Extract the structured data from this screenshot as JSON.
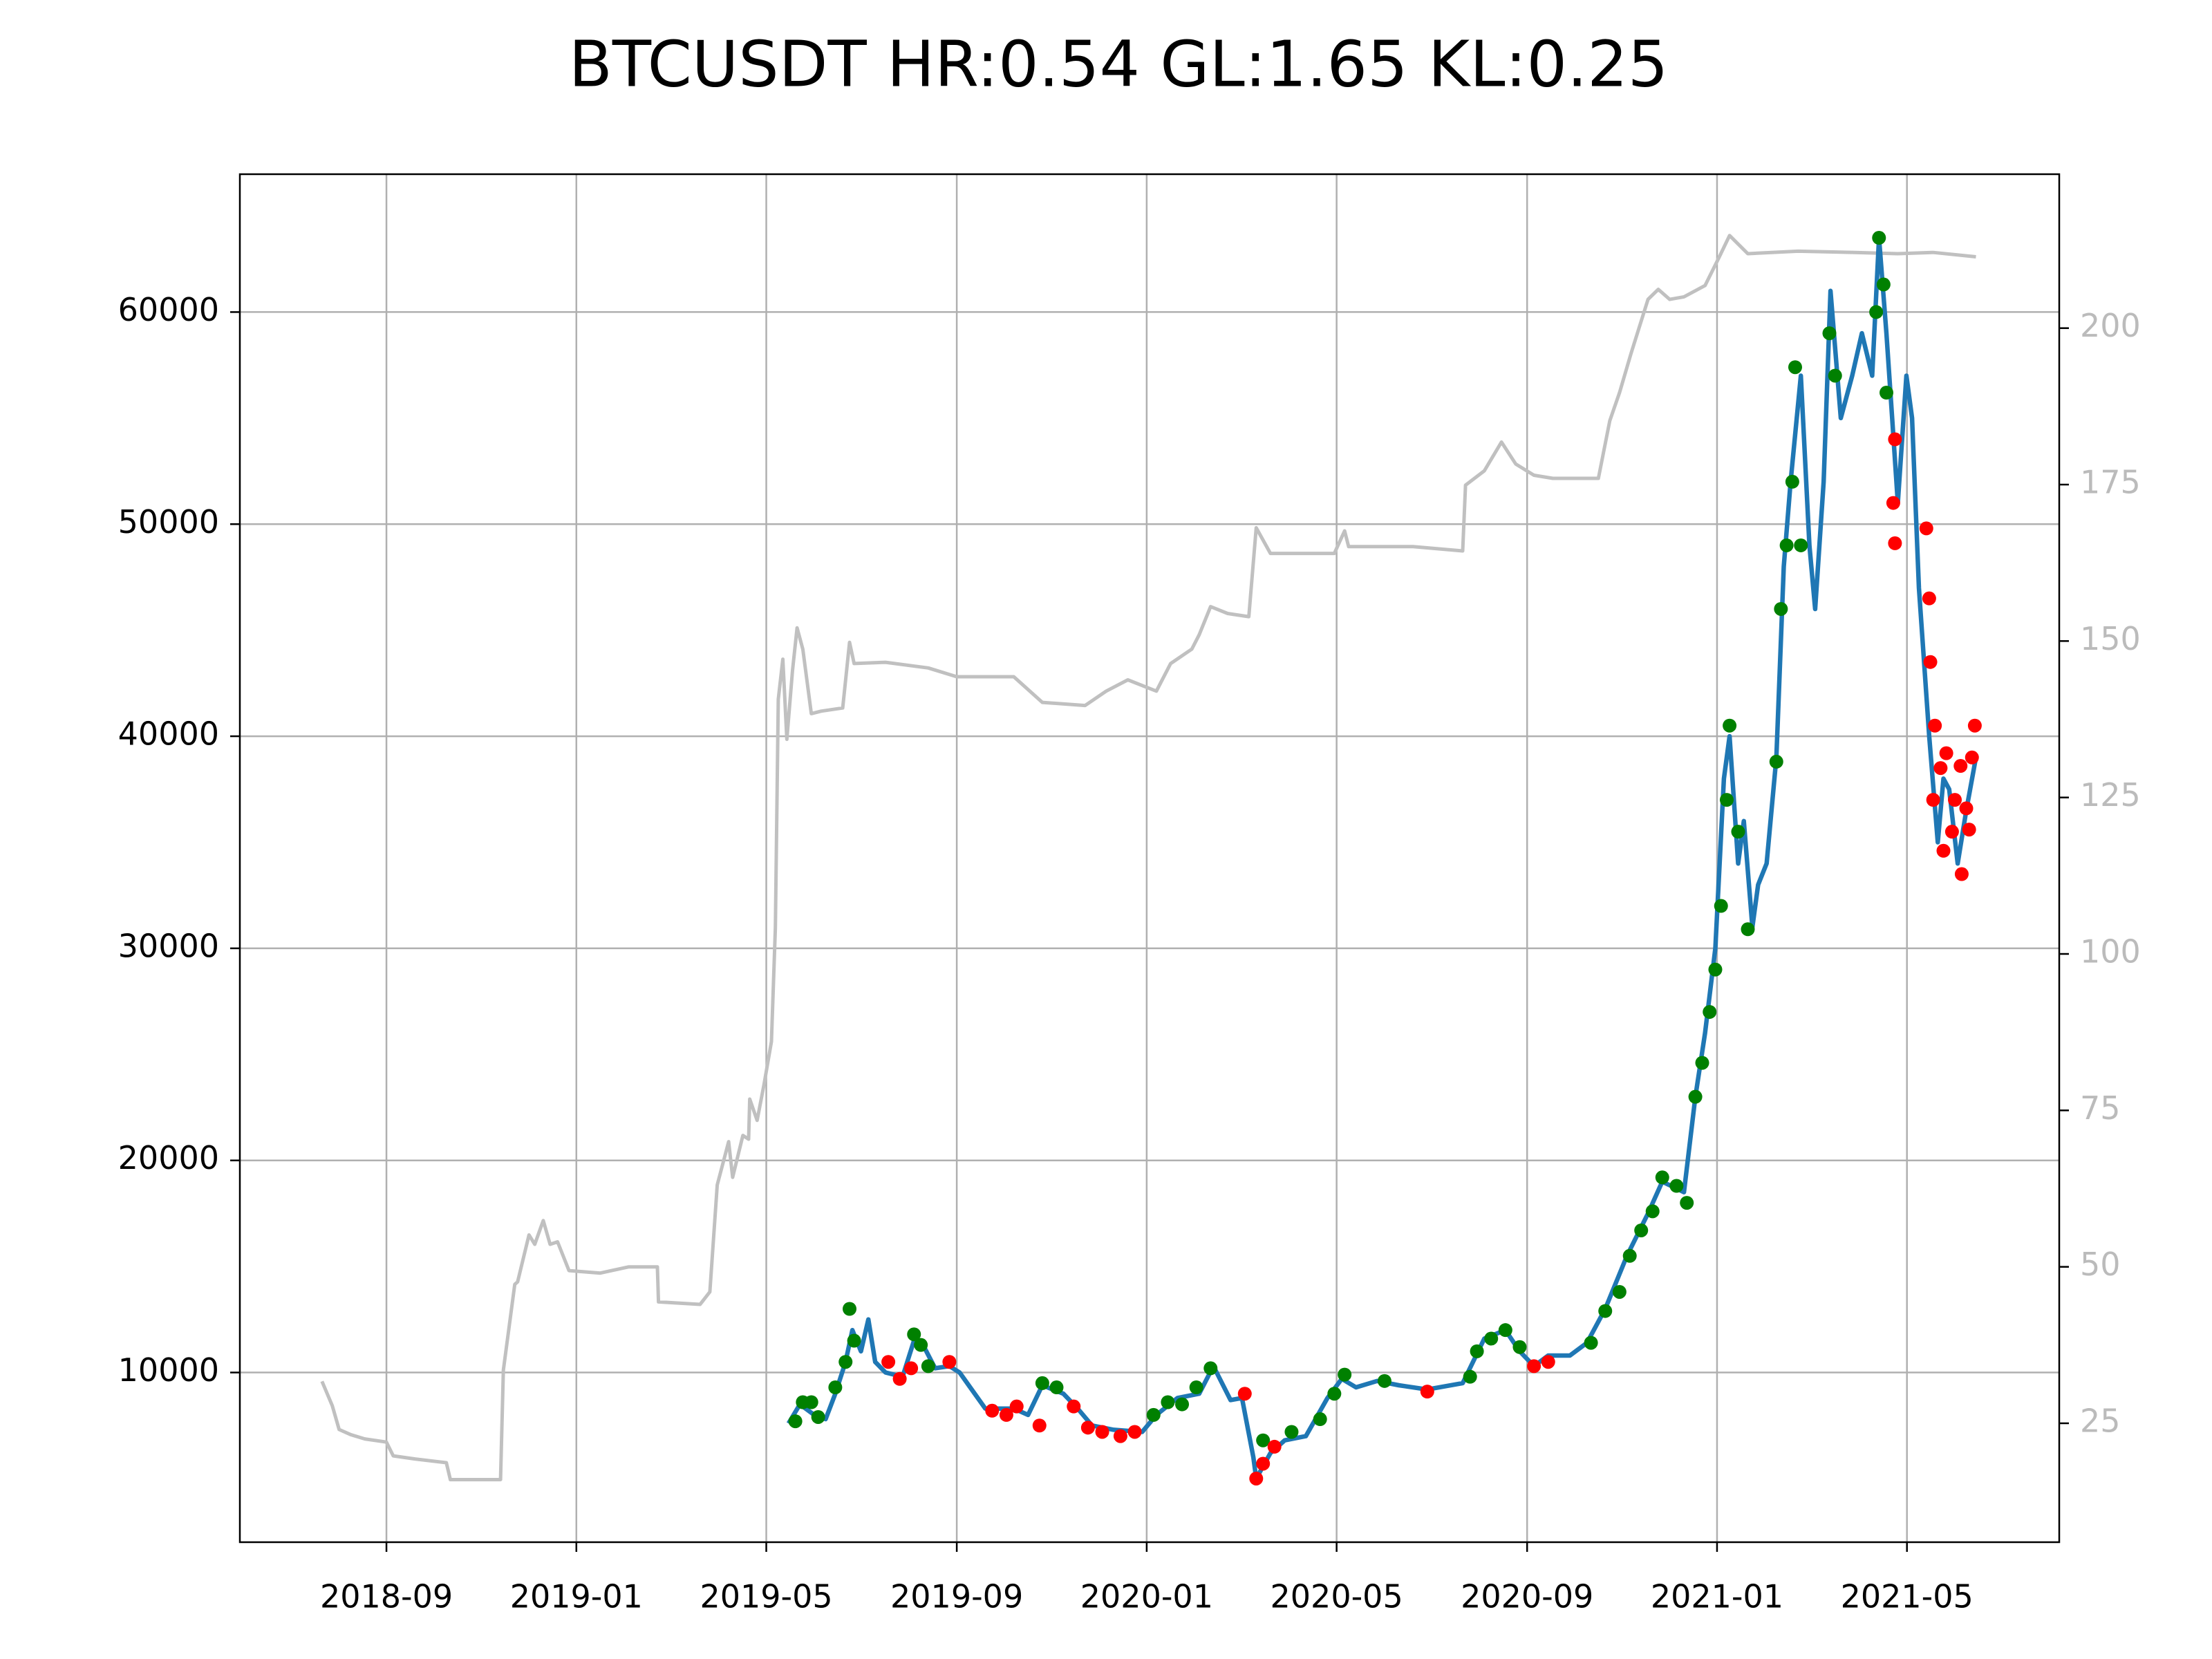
{
  "chart_data": {
    "type": "line",
    "title": "BTCUSDT HR:0.54 GL:1.65 KL:0.25",
    "xlim": [
      2018.41,
      2021.6
    ],
    "xticks": [
      {
        "value": 2018.667,
        "label": "2018-09"
      },
      {
        "value": 2019.0,
        "label": "2019-01"
      },
      {
        "value": 2019.333,
        "label": "2019-05"
      },
      {
        "value": 2019.667,
        "label": "2019-09"
      },
      {
        "value": 2020.0,
        "label": "2020-01"
      },
      {
        "value": 2020.333,
        "label": "2020-05"
      },
      {
        "value": 2020.667,
        "label": "2020-09"
      },
      {
        "value": 2021.0,
        "label": "2021-01"
      },
      {
        "value": 2021.333,
        "label": "2021-05"
      }
    ],
    "ylim": [
      2000,
      66500
    ],
    "yticks": [
      10000,
      20000,
      30000,
      40000,
      50000,
      60000
    ],
    "y2lim": [
      6,
      224.6
    ],
    "y2ticks": [
      25,
      50,
      75,
      100,
      125,
      150,
      175,
      200
    ],
    "y2_tick_color": "#bbbbbb",
    "grid": true,
    "series": [
      {
        "color": "#c0c0c0",
        "style": "line",
        "axis": "y2",
        "x": [
          2018.554,
          2018.572,
          2018.584,
          2018.604,
          2018.629,
          2018.667,
          2018.679,
          2018.717,
          2018.772,
          2018.779,
          2018.867,
          2018.872,
          2018.892,
          2018.897,
          2018.917,
          2018.927,
          2018.942,
          2018.954,
          2018.967,
          2018.987,
          2019.042,
          2019.092,
          2019.142,
          2019.144,
          2019.217,
          2019.234,
          2019.247,
          2019.267,
          2019.274,
          2019.292,
          2019.302,
          2019.304,
          2019.317,
          2019.329,
          2019.342,
          2019.349,
          2019.354,
          2019.362,
          2019.369,
          2019.379,
          2019.387,
          2019.397,
          2019.412,
          2019.429,
          2019.467,
          2019.479,
          2019.487,
          2019.542,
          2019.617,
          2019.667,
          2019.767,
          2019.817,
          2019.892,
          2019.929,
          2019.967,
          2020.017,
          2020.042,
          2020.079,
          2020.092,
          2020.112,
          2020.142,
          2020.179,
          2020.192,
          2020.217,
          2020.329,
          2020.347,
          2020.354,
          2020.467,
          2020.554,
          2020.559,
          2020.592,
          2020.622,
          2020.647,
          2020.679,
          2020.712,
          2020.792,
          2020.812,
          2020.829,
          2020.849,
          2020.879,
          2020.897,
          2020.917,
          2020.942,
          2020.979,
          2021.004,
          2021.022,
          2021.054,
          2021.142,
          2021.242,
          2021.317,
          2021.379,
          2021.454
        ],
        "values": [
          31.7,
          27.8,
          24.0,
          23.2,
          22.5,
          22,
          19.8,
          19.3,
          18.7,
          16,
          16,
          33.5,
          47.2,
          47.6,
          55.1,
          53.6,
          57.4,
          53.6,
          54,
          49.4,
          49,
          50,
          50,
          44.4,
          44,
          46,
          63.1,
          70,
          64.3,
          71,
          70.4,
          76.8,
          73.4,
          79.1,
          86,
          104.2,
          140.7,
          147.1,
          134.3,
          145.3,
          152.1,
          148.7,
          138.4,
          138.8,
          139.3,
          149.8,
          146.4,
          146.6,
          145.7,
          144.3,
          144.3,
          140.2,
          139.7,
          142,
          143.8,
          142,
          146.4,
          148.7,
          151,
          155.5,
          154.4,
          153.9,
          168.1,
          164,
          164,
          167.6,
          165.1,
          165.1,
          164.4,
          174.9,
          177.2,
          181.8,
          178.3,
          176.5,
          176,
          176,
          185.2,
          189.7,
          195.9,
          204.6,
          206.2,
          204.6,
          205,
          206.8,
          211.4,
          214.8,
          211.9,
          212.3,
          212.1,
          211.9,
          212.1,
          211.4
        ]
      },
      {
        "color": "#1f77b4",
        "style": "line",
        "x": [
          2019.372,
          2019.392,
          2019.417,
          2019.437,
          2019.454,
          2019.472,
          2019.484,
          2019.499,
          2019.512,
          2019.524,
          2019.542,
          2019.572,
          2019.592,
          2019.604,
          2019.629,
          2019.654,
          2019.672,
          2019.717,
          2019.767,
          2019.792,
          2019.817,
          2019.854,
          2019.879,
          2019.904,
          2019.942,
          2019.992,
          2020.017,
          2020.054,
          2020.092,
          2020.117,
          2020.147,
          2020.167,
          2020.187,
          2020.192,
          2020.217,
          2020.242,
          2020.279,
          2020.317,
          2020.342,
          2020.367,
          2020.404,
          2020.442,
          2020.492,
          2020.554,
          2020.592,
          2020.629,
          2020.654,
          2020.679,
          2020.704,
          2020.742,
          2020.772,
          2020.804,
          2020.842,
          2020.879,
          2020.904,
          2020.942,
          2020.962,
          2020.979,
          2020.997,
          2021.012,
          2021.022,
          2021.037,
          2021.047,
          2021.062,
          2021.072,
          2021.087,
          2021.104,
          2021.117,
          2021.129,
          2021.147,
          2021.162,
          2021.172,
          2021.187,
          2021.199,
          2021.217,
          2021.237,
          2021.254,
          2021.272,
          2021.284,
          2021.297,
          2021.307,
          2021.317,
          2021.332,
          2021.342,
          2021.354,
          2021.372,
          2021.387,
          2021.397,
          2021.407,
          2021.422,
          2021.437,
          2021.454
        ],
        "values": [
          7600,
          8500,
          8000,
          7800,
          9000,
          10500,
          12000,
          11000,
          12500,
          10500,
          10000,
          9800,
          11500,
          11500,
          10200,
          10300,
          10000,
          8300,
          8300,
          8000,
          9400,
          9000,
          8300,
          7500,
          7300,
          7200,
          8000,
          8800,
          9000,
          10300,
          8700,
          8800,
          6000,
          5000,
          6200,
          6800,
          7000,
          8800,
          9700,
          9300,
          9600,
          9400,
          9200,
          9500,
          11600,
          12000,
          11000,
          10300,
          10800,
          10800,
          11400,
          13000,
          15500,
          17500,
          19000,
          18500,
          23000,
          26000,
          30000,
          38000,
          40000,
          34000,
          36000,
          31000,
          33000,
          34000,
          39000,
          48000,
          52000,
          57000,
          49000,
          46000,
          52000,
          61000,
          55000,
          57000,
          59000,
          57000,
          63500,
          59000,
          55000,
          51000,
          57000,
          55000,
          47000,
          40000,
          35000,
          38000,
          37500,
          34000,
          36500,
          39000
        ]
      },
      {
        "color": "#008000",
        "style": "dots",
        "x": [
          2019.384,
          2019.397,
          2019.412,
          2019.424,
          2019.454,
          2019.472,
          2019.479,
          2019.487,
          2019.592,
          2019.604,
          2019.617,
          2019.817,
          2019.842,
          2020.012,
          2020.037,
          2020.062,
          2020.087,
          2020.112,
          2020.204,
          2020.254,
          2020.304,
          2020.329,
          2020.347,
          2020.417,
          2020.567,
          2020.579,
          2020.604,
          2020.629,
          2020.654,
          2020.779,
          2020.804,
          2020.829,
          2020.847,
          2020.867,
          2020.887,
          2020.904,
          2020.929,
          2020.947,
          2020.962,
          2020.974,
          2020.987,
          2020.997,
          2021.007,
          2021.017,
          2021.022,
          2021.037,
          2021.054,
          2021.104,
          2021.112,
          2021.122,
          2021.132,
          2021.137,
          2021.147,
          2021.197,
          2021.207,
          2021.279,
          2021.284,
          2021.292,
          2021.297
        ],
        "values": [
          7700,
          8600,
          8600,
          7900,
          9300,
          10500,
          13000,
          11500,
          11800,
          11300,
          10300,
          9500,
          9300,
          8000,
          8600,
          8500,
          9300,
          10200,
          6800,
          7200,
          7800,
          9000,
          9900,
          9600,
          9800,
          11000,
          11600,
          12000,
          11200,
          11400,
          12900,
          13800,
          15500,
          16700,
          17600,
          19200,
          18800,
          18000,
          23000,
          24600,
          27000,
          29000,
          32000,
          37000,
          40500,
          35500,
          30900,
          38800,
          46000,
          49000,
          52000,
          57400,
          49000,
          59000,
          57000,
          60000,
          63500,
          61300,
          56200
        ]
      },
      {
        "color": "#ff0000",
        "style": "dots",
        "x": [
          2019.547,
          2019.567,
          2019.587,
          2019.654,
          2019.729,
          2019.754,
          2019.772,
          2019.812,
          2019.872,
          2019.897,
          2019.922,
          2019.954,
          2019.979,
          2020.172,
          2020.192,
          2020.204,
          2020.224,
          2020.492,
          2020.679,
          2020.704,
          2021.312,
          2021.309,
          2021.312,
          2021.367,
          2021.372,
          2021.374,
          2021.382,
          2021.379,
          2021.392,
          2021.397,
          2021.402,
          2021.412,
          2021.417,
          2021.427,
          2021.429,
          2021.437,
          2021.442,
          2021.447,
          2021.452
        ],
        "values": [
          10500,
          9700,
          10200,
          10500,
          8200,
          8000,
          8400,
          7500,
          8400,
          7400,
          7200,
          7000,
          7200,
          9000,
          5000,
          5700,
          6500,
          9100,
          10300,
          10500,
          54000,
          51000,
          49100,
          49800,
          46500,
          43500,
          40500,
          37000,
          38500,
          34600,
          39200,
          35500,
          37000,
          38600,
          33500,
          36600,
          35600,
          39000,
          40500
        ]
      }
    ]
  }
}
